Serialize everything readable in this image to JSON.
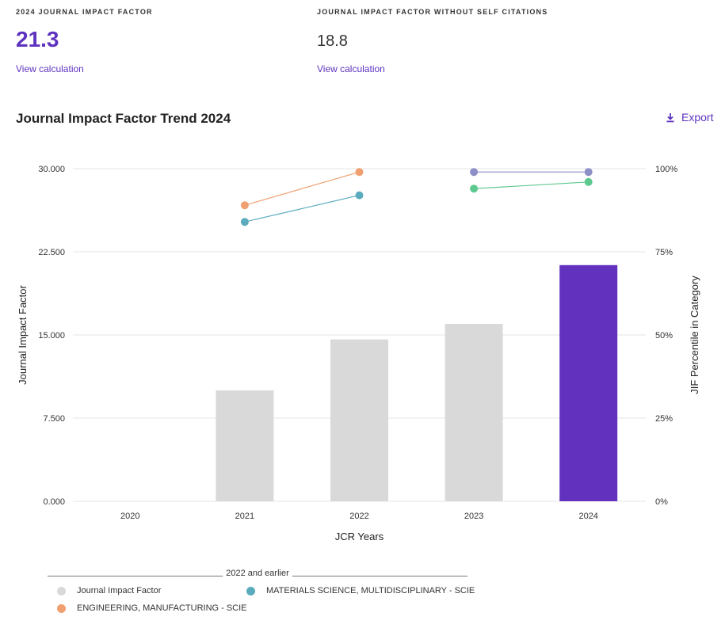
{
  "metrics": {
    "jif": {
      "label": "2024 JOURNAL IMPACT FACTOR",
      "value": "21.3",
      "link": "View calculation"
    },
    "jif_no_self": {
      "label": "JOURNAL IMPACT FACTOR WITHOUT SELF CITATIONS",
      "value": "18.8",
      "link": "View calculation"
    }
  },
  "trend": {
    "title": "Journal Impact Factor Trend 2024",
    "export_label": "Export"
  },
  "chart_data": {
    "type": "bar",
    "xlabel": "JCR Years",
    "ylabel": "Journal Impact Factor",
    "y2label": "JIF Percentile in Category",
    "categories": [
      "2020",
      "2021",
      "2022",
      "2023",
      "2024"
    ],
    "ylim": [
      0,
      30
    ],
    "y2lim": [
      0,
      100
    ],
    "yticks": [
      "0.000",
      "7.500",
      "15.000",
      "22.500",
      "30.000"
    ],
    "y2ticks": [
      "0%",
      "25%",
      "50%",
      "75%",
      "100%"
    ],
    "bars": {
      "name": "Journal Impact Factor",
      "values": [
        null,
        10.0,
        14.6,
        16.0,
        21.3
      ],
      "colors": [
        "#d9d9d9",
        "#d9d9d9",
        "#d9d9d9",
        "#d9d9d9",
        "#6232be"
      ]
    },
    "percentile_series": [
      {
        "name": "ENGINEERING, MANUFACTURING - SCIE",
        "color": "#f0a070",
        "x": [
          "2021",
          "2022"
        ],
        "values": [
          89,
          99
        ]
      },
      {
        "name": "MATERIALS SCIENCE, MULTIDISCIPLINARY - SCIE",
        "color": "#5aabbe",
        "x": [
          "2021",
          "2022"
        ],
        "values": [
          84,
          92
        ]
      },
      {
        "name": "",
        "color": "#8e8ec8",
        "x": [
          "2023",
          "2024"
        ],
        "values": [
          99,
          99
        ]
      },
      {
        "name": "",
        "color": "#5ec98f",
        "x": [
          "2023",
          "2024"
        ],
        "values": [
          94,
          96
        ]
      }
    ],
    "grid": true
  },
  "legend": {
    "group_title": "2022 and earlier",
    "items": [
      {
        "label": "Journal Impact Factor",
        "color": "#d9d9d9"
      },
      {
        "label": "MATERIALS SCIENCE, MULTIDISCIPLINARY - SCIE",
        "color": "#5aabbe"
      },
      {
        "label": "ENGINEERING, MANUFACTURING - SCIE",
        "color": "#f0a070"
      }
    ]
  }
}
